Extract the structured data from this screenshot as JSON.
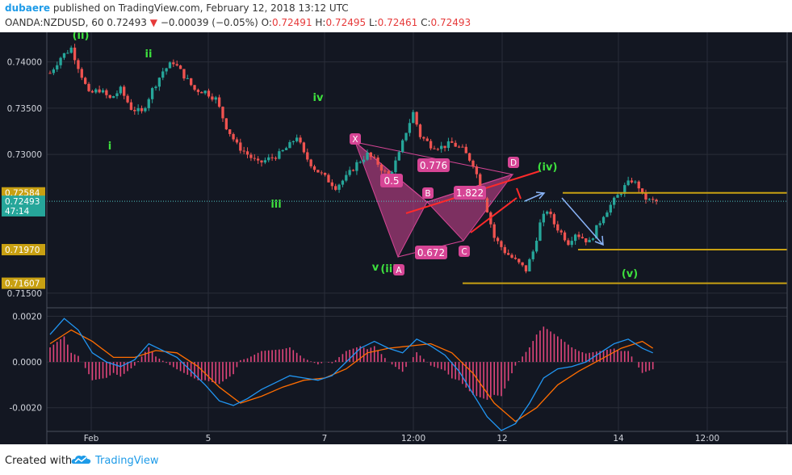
{
  "header": {
    "author": "dubaere",
    "published_text": "published on TradingView.com, February 12, 2018 13:12 UTC",
    "symbol": "OANDA:NZDUSD, 60",
    "last": "0.72493",
    "change": "−0.00039 (−0.05%)",
    "o_label": "O:",
    "o_value": "0.72491",
    "h_label": "H:",
    "h_value": "0.72495",
    "l_label": "L:",
    "l_value": "0.72461",
    "c_label": "C:",
    "c_value": "0.72493"
  },
  "price_axis": {
    "ticks": [
      "0.74000",
      "0.73500",
      "0.73000",
      "0.71500"
    ],
    "tick_values": [
      0.74,
      0.735,
      0.73,
      0.715
    ],
    "badges": [
      {
        "text": "0.72584",
        "value": 0.72584,
        "color": "#c8a012"
      },
      {
        "text": "0.72493",
        "value": 0.72493,
        "color": "#26a69a"
      },
      {
        "text": "47:14",
        "value": 0.7239,
        "color": "#26a69a"
      },
      {
        "text": "0.71970",
        "value": 0.7197,
        "color": "#c8a012"
      },
      {
        "text": "0.71607",
        "value": 0.71607,
        "color": "#c8a012"
      }
    ],
    "ylim": [
      0.7135,
      0.7432
    ]
  },
  "macd_axis": {
    "ticks": [
      "0.0020",
      "0.0000",
      "-0.0020"
    ],
    "tick_values": [
      0.002,
      0.0,
      -0.002
    ],
    "ylim": [
      -0.003,
      0.0023
    ]
  },
  "time_axis": {
    "labels": [
      "Feb",
      "5",
      "7",
      "12:00",
      "12",
      "14",
      "12:00"
    ]
  },
  "wave_labels": [
    "(ii)",
    "ii",
    "i",
    "iv",
    "iii",
    "v",
    "(iii",
    "(iv)",
    "(v)"
  ],
  "pattern_labels": [
    "X",
    "A",
    "B",
    "C",
    "D"
  ],
  "ratio_labels": [
    "0.5",
    "0.776",
    "1.822",
    "0.672"
  ],
  "levels": [
    0.72584,
    0.7197,
    0.71607
  ],
  "colors": {
    "background": "#131722",
    "grid": "#2a2e39",
    "up": "#26a69a",
    "down": "#ef5350",
    "pattern": "#d64595",
    "wave": "#3ee03e",
    "level": "#c8a012",
    "macd": "#2196f3",
    "signal": "#ff6d00"
  },
  "chart_data": {
    "type": "candlestick",
    "symbol": "OANDA:NZDUSD",
    "interval": "60",
    "price_path": [
      [
        0,
        0.7388
      ],
      [
        3,
        0.7405
      ],
      [
        6,
        0.7415
      ],
      [
        8,
        0.7395
      ],
      [
        11,
        0.7365
      ],
      [
        14,
        0.737
      ],
      [
        17,
        0.736
      ],
      [
        20,
        0.737
      ],
      [
        23,
        0.735
      ],
      [
        26,
        0.7345
      ],
      [
        29,
        0.737
      ],
      [
        32,
        0.739
      ],
      [
        35,
        0.74
      ],
      [
        38,
        0.7385
      ],
      [
        41,
        0.737
      ],
      [
        44,
        0.7368
      ],
      [
        47,
        0.736
      ],
      [
        50,
        0.733
      ],
      [
        53,
        0.731
      ],
      [
        56,
        0.73
      ],
      [
        59,
        0.729
      ],
      [
        62,
        0.7295
      ],
      [
        65,
        0.73
      ],
      [
        68,
        0.731
      ],
      [
        70,
        0.732
      ],
      [
        72,
        0.73
      ],
      [
        75,
        0.7285
      ],
      [
        78,
        0.7275
      ],
      [
        81,
        0.7265
      ],
      [
        84,
        0.7275
      ],
      [
        87,
        0.729
      ],
      [
        90,
        0.73
      ],
      [
        93,
        0.729
      ],
      [
        96,
        0.7275
      ],
      [
        99,
        0.73
      ],
      [
        101,
        0.7325
      ],
      [
        103,
        0.7345
      ],
      [
        105,
        0.732
      ],
      [
        108,
        0.731
      ],
      [
        111,
        0.7308
      ],
      [
        114,
        0.7312
      ],
      [
        117,
        0.7305
      ],
      [
        120,
        0.729
      ],
      [
        123,
        0.7255
      ],
      [
        126,
        0.721
      ],
      [
        129,
        0.7195
      ],
      [
        132,
        0.7185
      ],
      [
        135,
        0.7175
      ],
      [
        137,
        0.7195
      ],
      [
        139,
        0.7225
      ],
      [
        141,
        0.724
      ],
      [
        143,
        0.7225
      ],
      [
        145,
        0.7215
      ],
      [
        147,
        0.7205
      ],
      [
        149,
        0.7215
      ],
      [
        151,
        0.721
      ],
      [
        153,
        0.7205
      ],
      [
        155,
        0.722
      ],
      [
        157,
        0.7235
      ],
      [
        159,
        0.7245
      ],
      [
        161,
        0.7255
      ],
      [
        163,
        0.7265
      ],
      [
        165,
        0.7272
      ],
      [
        167,
        0.7265
      ],
      [
        168,
        0.7255
      ],
      [
        170,
        0.725
      ],
      [
        172,
        0.7249
      ]
    ],
    "ylim": [
      0.7135,
      0.7432
    ],
    "series": [
      {
        "name": "MACD",
        "points": [
          [
            0,
            0.0012
          ],
          [
            4,
            0.0019
          ],
          [
            8,
            0.0014
          ],
          [
            12,
            0.0004
          ],
          [
            16,
            0.0
          ],
          [
            20,
            -0.0002
          ],
          [
            24,
            0.0001
          ],
          [
            28,
            0.0008
          ],
          [
            32,
            0.0005
          ],
          [
            36,
            0.0002
          ],
          [
            40,
            -0.0004
          ],
          [
            44,
            -0.001
          ],
          [
            48,
            -0.0017
          ],
          [
            52,
            -0.0019
          ],
          [
            56,
            -0.0016
          ],
          [
            60,
            -0.0012
          ],
          [
            64,
            -0.0009
          ],
          [
            68,
            -0.0006
          ],
          [
            72,
            -0.0007
          ],
          [
            76,
            -0.0008
          ],
          [
            80,
            -0.0006
          ],
          [
            84,
            0.0
          ],
          [
            88,
            0.0006
          ],
          [
            92,
            0.0009
          ],
          [
            96,
            0.0006
          ],
          [
            100,
            0.0004
          ],
          [
            104,
            0.001
          ],
          [
            108,
            0.0007
          ],
          [
            112,
            0.0003
          ],
          [
            116,
            -0.0004
          ],
          [
            120,
            -0.0014
          ],
          [
            124,
            -0.0024
          ],
          [
            128,
            -0.003
          ],
          [
            132,
            -0.0027
          ],
          [
            136,
            -0.0018
          ],
          [
            140,
            -0.0007
          ],
          [
            144,
            -0.0003
          ],
          [
            148,
            -0.0002
          ],
          [
            152,
            0.0
          ],
          [
            156,
            0.0004
          ],
          [
            160,
            0.0008
          ],
          [
            164,
            0.001
          ],
          [
            168,
            0.0006
          ],
          [
            171,
            0.0004
          ]
        ]
      },
      {
        "name": "Signal",
        "points": [
          [
            0,
            0.0008
          ],
          [
            6,
            0.0014
          ],
          [
            12,
            0.0009
          ],
          [
            18,
            0.0002
          ],
          [
            24,
            0.0002
          ],
          [
            30,
            0.0005
          ],
          [
            36,
            0.0004
          ],
          [
            42,
            -0.0002
          ],
          [
            48,
            -0.0011
          ],
          [
            54,
            -0.0018
          ],
          [
            60,
            -0.0015
          ],
          [
            66,
            -0.0011
          ],
          [
            72,
            -0.0008
          ],
          [
            78,
            -0.0007
          ],
          [
            84,
            -0.0003
          ],
          [
            90,
            0.0004
          ],
          [
            96,
            0.0006
          ],
          [
            102,
            0.0007
          ],
          [
            108,
            0.0008
          ],
          [
            114,
            0.0004
          ],
          [
            120,
            -0.0005
          ],
          [
            126,
            -0.0018
          ],
          [
            132,
            -0.0026
          ],
          [
            138,
            -0.002
          ],
          [
            144,
            -0.001
          ],
          [
            150,
            -0.0004
          ],
          [
            156,
            0.0001
          ],
          [
            162,
            0.0006
          ],
          [
            168,
            0.0009
          ],
          [
            171,
            0.0006
          ]
        ]
      }
    ]
  }
}
